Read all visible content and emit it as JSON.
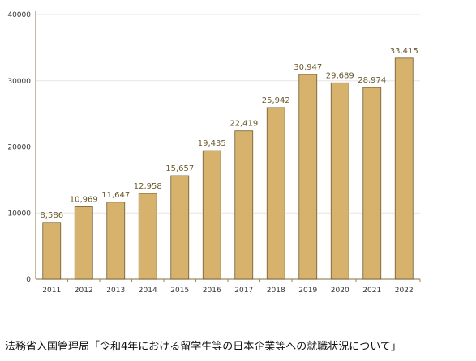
{
  "colors": {
    "bar": "#d6b26c",
    "bar_stroke": "#6e5a32",
    "axis": "#9c8a5c",
    "grid": "#e6e6e6"
  },
  "chart_data": {
    "type": "bar",
    "categories": [
      "2011",
      "2012",
      "2013",
      "2014",
      "2015",
      "2016",
      "2017",
      "2018",
      "2019",
      "2020",
      "2021",
      "2022"
    ],
    "values": [
      8586,
      10969,
      11647,
      12958,
      15657,
      19435,
      22419,
      25942,
      30947,
      29689,
      28974,
      33415
    ],
    "data_labels": [
      "8,586",
      "10,969",
      "11,647",
      "12,958",
      "15,657",
      "19,435",
      "22,419",
      "25,942",
      "30,947",
      "29,689",
      "28,974",
      "33,415"
    ],
    "yticks": [
      0,
      10000,
      20000,
      30000,
      40000
    ],
    "ylim": [
      0,
      40000
    ],
    "grid": true,
    "legend": "none"
  },
  "caption": "法務省入国管理局「令和4年における留学生等の日本企業等への就職状況について」"
}
